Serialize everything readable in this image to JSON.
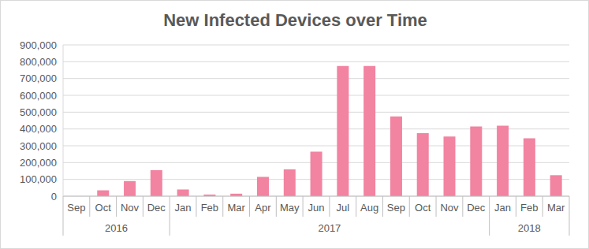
{
  "chart_data": {
    "type": "bar",
    "title": "New Infected Devices over Time",
    "categories": [
      "Sep",
      "Oct",
      "Nov",
      "Dec",
      "Jan",
      "Feb",
      "Mar",
      "Apr",
      "May",
      "Jun",
      "Jul",
      "Aug",
      "Sep",
      "Oct",
      "Nov",
      "Dec",
      "Jan",
      "Feb",
      "Mar"
    ],
    "group_labels": [
      "2016",
      "2016",
      "2016",
      "2016",
      "2017",
      "2017",
      "2017",
      "2017",
      "2017",
      "2017",
      "2017",
      "2017",
      "2017",
      "2017",
      "2017",
      "2017",
      "2018",
      "2018",
      "2018"
    ],
    "values": [
      0,
      35000,
      90000,
      155000,
      40000,
      10000,
      15000,
      115000,
      160000,
      265000,
      775000,
      775000,
      475000,
      375000,
      355000,
      415000,
      420000,
      345000,
      125000
    ],
    "color": "#f283a1",
    "ylim": [
      0,
      900000
    ],
    "yticks": [
      0,
      {
        "value": 100000,
        "label": "100,000"
      },
      {
        "value": 200000,
        "label": "200,000"
      },
      {
        "value": 300000,
        "label": "300,000"
      },
      {
        "value": 400000,
        "label": "400,000"
      },
      {
        "value": 500000,
        "label": "500,000"
      },
      {
        "value": 600000,
        "label": "600,000"
      },
      {
        "value": 700000,
        "label": "700,000"
      },
      {
        "value": 800000,
        "label": "800,000"
      },
      {
        "value": 900000,
        "label": "900,000"
      }
    ],
    "grid": true
  }
}
